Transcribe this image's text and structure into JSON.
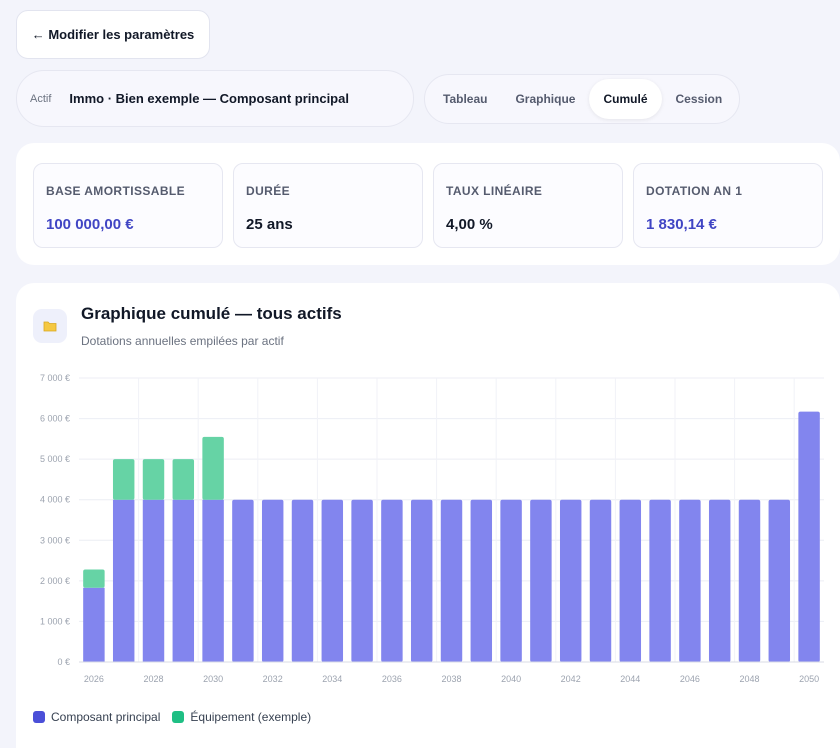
{
  "back_button": {
    "label": "← Modifier les paramètres"
  },
  "actif": {
    "label": "Actif",
    "selected": "Immo · Bien exemple — Composant principal"
  },
  "tabs": [
    {
      "label": "Tableau",
      "active": false
    },
    {
      "label": "Graphique",
      "active": false
    },
    {
      "label": "Cumulé",
      "active": true
    },
    {
      "label": "Cession",
      "active": false
    }
  ],
  "stats": [
    {
      "label": "BASE AMORTISSABLE",
      "value": "100 000,00 €",
      "accent": true
    },
    {
      "label": "DURÉE",
      "value": "25 ans",
      "accent": false
    },
    {
      "label": "TAUX LINÉAIRE",
      "value": "4,00 %",
      "accent": false
    },
    {
      "label": "DOTATION AN 1",
      "value": "1 830,14 €",
      "accent": true
    }
  ],
  "chart_card": {
    "title": "Graphique cumulé — tous actifs",
    "subtitle": "Dotations annuelles empilées par actif",
    "icon": "folder-icon"
  },
  "chart_data": {
    "type": "bar",
    "stacked": true,
    "title": "Graphique cumulé — tous actifs",
    "subtitle": "Dotations annuelles empilées par actif",
    "categories": [
      "2026",
      "2027",
      "2028",
      "2029",
      "2030",
      "2031",
      "2032",
      "2033",
      "2034",
      "2035",
      "2036",
      "2037",
      "2038",
      "2039",
      "2040",
      "2041",
      "2042",
      "2043",
      "2044",
      "2045",
      "2046",
      "2047",
      "2048",
      "2049",
      "2050"
    ],
    "x_tick_labels": [
      "2026",
      "2028",
      "2030",
      "2032",
      "2034",
      "2036",
      "2038",
      "2040",
      "2042",
      "2044",
      "2046",
      "2048",
      "2050"
    ],
    "y_tick_labels": [
      "0 €",
      "1 000 €",
      "2 000 €",
      "3 000 €",
      "4 000 €",
      "5 000 €",
      "6 000 €",
      "7 000 €"
    ],
    "ylim": [
      0,
      7000
    ],
    "grid": true,
    "legend_position": "bottom-left",
    "series": [
      {
        "name": "Composant principal",
        "color": "#8285ee",
        "legend_color": "#4b4fd8",
        "values": [
          1830,
          4000,
          4000,
          4000,
          4000,
          4000,
          4000,
          4000,
          4000,
          4000,
          4000,
          4000,
          4000,
          4000,
          4000,
          4000,
          4000,
          4000,
          4000,
          4000,
          4000,
          4000,
          4000,
          4000,
          6170
        ]
      },
      {
        "name": "Équipement (exemple)",
        "color": "#66d3a5",
        "legend_color": "#1fbf84",
        "values": [
          450,
          1000,
          1000,
          1000,
          1550,
          0,
          0,
          0,
          0,
          0,
          0,
          0,
          0,
          0,
          0,
          0,
          0,
          0,
          0,
          0,
          0,
          0,
          0,
          0,
          0
        ]
      }
    ]
  }
}
